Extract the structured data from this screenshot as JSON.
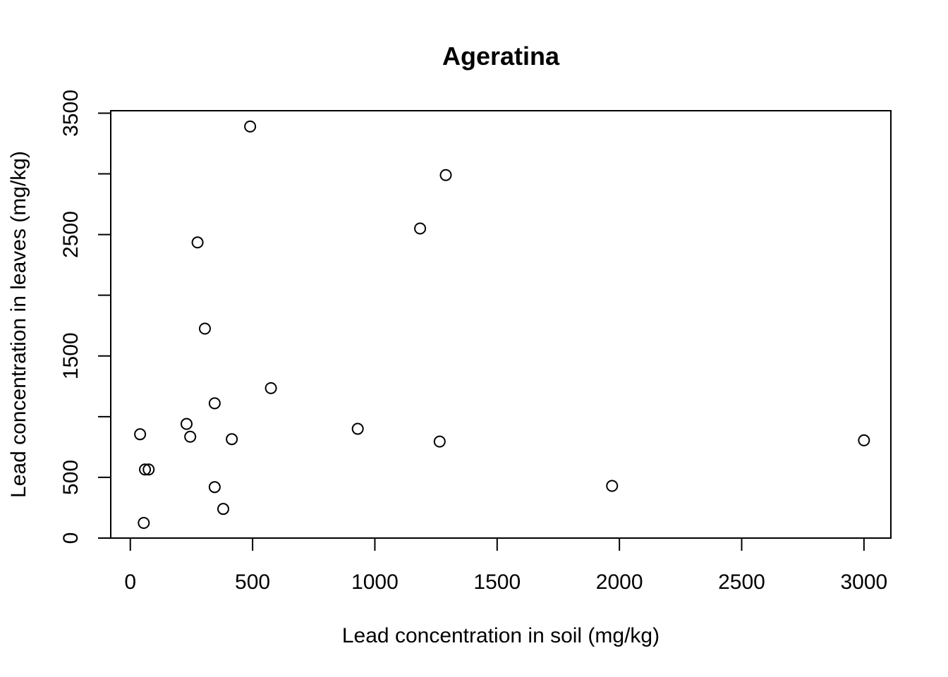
{
  "chart_data": {
    "type": "scatter",
    "title": "Ageratina",
    "xlabel": "Lead concentration in soil (mg/kg)",
    "ylabel": "Lead concentration in leaves (mg/kg)",
    "xlim": [
      -80,
      3110
    ],
    "ylim": [
      0,
      3520
    ],
    "xticks": [
      0,
      500,
      1000,
      1500,
      2000,
      2500,
      3000
    ],
    "yticks": [
      0,
      500,
      1000,
      1500,
      2000,
      2500,
      3000,
      3500
    ],
    "xtick_labels": [
      "0",
      "500",
      "1000",
      "1500",
      "2000",
      "2500",
      "3000"
    ],
    "ytick_labels": [
      "0",
      "500",
      "1500",
      "2500",
      "3500"
    ],
    "ytick_label_values": [
      0,
      500,
      1500,
      2500,
      3500
    ],
    "grid": false,
    "legend": "none",
    "marker": "open-circle",
    "points": [
      {
        "x": 490,
        "y": 3390
      },
      {
        "x": 1290,
        "y": 2990
      },
      {
        "x": 1185,
        "y": 2550
      },
      {
        "x": 275,
        "y": 2435
      },
      {
        "x": 305,
        "y": 1725
      },
      {
        "x": 575,
        "y": 1235
      },
      {
        "x": 345,
        "y": 1110
      },
      {
        "x": 230,
        "y": 940
      },
      {
        "x": 930,
        "y": 900
      },
      {
        "x": 40,
        "y": 855
      },
      {
        "x": 245,
        "y": 835
      },
      {
        "x": 415,
        "y": 815
      },
      {
        "x": 1265,
        "y": 795
      },
      {
        "x": 3000,
        "y": 805
      },
      {
        "x": 60,
        "y": 565
      },
      {
        "x": 75,
        "y": 565
      },
      {
        "x": 345,
        "y": 420
      },
      {
        "x": 1970,
        "y": 430
      },
      {
        "x": 380,
        "y": 240
      },
      {
        "x": 55,
        "y": 125
      }
    ]
  }
}
